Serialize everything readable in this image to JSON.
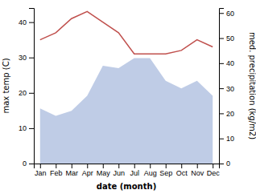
{
  "chart_data": {
    "type": "line",
    "categories": [
      "Jan",
      "Feb",
      "Mar",
      "Apr",
      "May",
      "Jun",
      "Jul",
      "Aug",
      "Sep",
      "Oct",
      "Nov",
      "Dec"
    ],
    "xlabel": "date (month)",
    "ylabel": "max temp (C)",
    "y2label": "med. precipitation (kg/m2)",
    "ylim": [
      0,
      44
    ],
    "yticks": [
      0,
      10,
      20,
      30,
      40
    ],
    "y2lim": [
      0,
      62
    ],
    "y2ticks": [
      0,
      10,
      20,
      30,
      40,
      50,
      60
    ],
    "series": [
      {
        "type": "line",
        "color": "#c0504d",
        "values": [
          35,
          37,
          41,
          43,
          40,
          37,
          31,
          31,
          31,
          32,
          35,
          33
        ]
      },
      {
        "type": "area",
        "axis": "y2",
        "color": "#aabbdd",
        "values": [
          22,
          19,
          21,
          27,
          39,
          38,
          42,
          42,
          33,
          30,
          33,
          27
        ]
      }
    ]
  }
}
